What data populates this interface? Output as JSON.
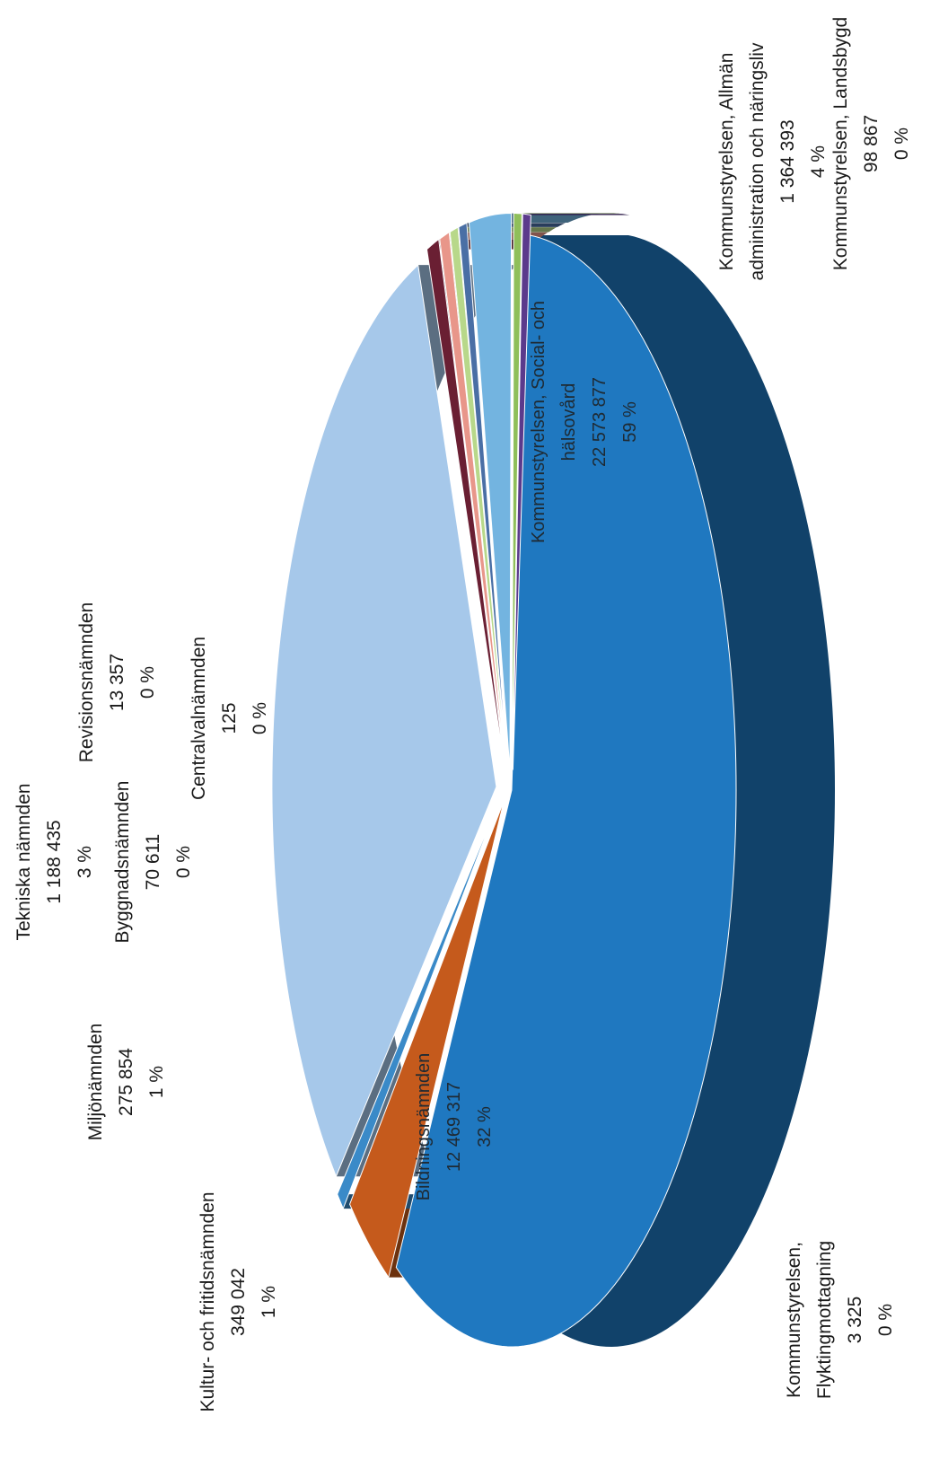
{
  "chart_data": {
    "type": "pie",
    "style": "3d-exploded",
    "slices": [
      {
        "name": "Kommunstyrelsen, Social- och hälsovård",
        "value": "22 573 877",
        "amount": 22573877,
        "percent": "59 %",
        "color": "#1f78c0"
      },
      {
        "name": "Bildningsnämnden",
        "value": "12 469 317",
        "amount": 12469317,
        "percent": "32 %",
        "color": "#a6c8ea"
      },
      {
        "name": "Kommunstyrelsen, Allmän administration och näringsliv",
        "value": "1 364 393",
        "amount": 1364393,
        "percent": "4 %",
        "color": "#c55a1c"
      },
      {
        "name": "Tekniska nämnden",
        "value": "1 188 435",
        "amount": 1188435,
        "percent": "3 %",
        "color": "#73b4e0"
      },
      {
        "name": "Kultur- och fritidsnämnden",
        "value": "349 042",
        "amount": 349042,
        "percent": "1 %",
        "color": "#6a1f33"
      },
      {
        "name": "Miljönämnden",
        "value": "275 854",
        "amount": 275854,
        "percent": "1 %",
        "color": "#e8968a"
      },
      {
        "name": "Kommunstyrelsen, Landsbygd",
        "value": "98 867",
        "amount": 98867,
        "percent": "0 %",
        "color": "#8fbf5a"
      },
      {
        "name": "Byggnadsnämnden",
        "value": "70 611",
        "amount": 70611,
        "percent": "0 %",
        "color": "#b8d88a"
      },
      {
        "name": "Revisionsnämnden",
        "value": "13 357",
        "amount": 13357,
        "percent": "0 %",
        "color": "#4a6fa5"
      },
      {
        "name": "Kommunstyrelsen, Flyktingmottagning",
        "value": "3 325",
        "amount": 3325,
        "percent": "0 %",
        "color": "#3a8ac8"
      },
      {
        "name": "Centralvalnämnden",
        "value": "125",
        "amount": 125,
        "percent": "0 %",
        "color": "#5b3a8c"
      }
    ],
    "labels": [
      {
        "id": "label-social",
        "lines": [
          "Kommunstyrelsen, Social- och",
          "hälsovård",
          "22 573 877",
          "59 %"
        ]
      },
      {
        "id": "label-bildning",
        "lines": [
          "Bildningsnämnden",
          "12 469 317",
          "32 %"
        ]
      },
      {
        "id": "label-allman",
        "lines": [
          "Kommunstyrelsen, Allmän",
          "administration och näringsliv",
          "1 364 393",
          "4 %"
        ]
      },
      {
        "id": "label-landsbygd",
        "lines": [
          "Kommunstyrelsen, Landsbygd",
          "98 867",
          "0 %"
        ]
      },
      {
        "id": "label-tekniska",
        "lines": [
          "Tekniska nämnden",
          "1 188 435",
          "3 %"
        ]
      },
      {
        "id": "label-revision",
        "lines": [
          "Revisionsnämnden",
          "13 357",
          "0 %"
        ]
      },
      {
        "id": "label-bygg",
        "lines": [
          "Byggnadsnämnden",
          "70 611",
          "0 %"
        ]
      },
      {
        "id": "label-central",
        "lines": [
          "Centralvalnämnden",
          "125",
          "0 %"
        ]
      },
      {
        "id": "label-miljo",
        "lines": [
          "Miljönämnden",
          "275 854",
          "1 %"
        ]
      },
      {
        "id": "label-kultur",
        "lines": [
          "Kultur- och fritidsnämnden",
          "349 042",
          "1 %"
        ]
      },
      {
        "id": "label-flykting",
        "lines": [
          "Kommunstyrelsen,",
          "Flyktingmottagning",
          "3 325",
          "0 %"
        ]
      }
    ]
  }
}
